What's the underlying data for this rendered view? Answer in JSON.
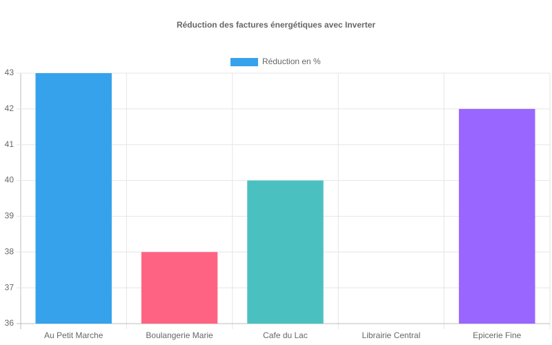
{
  "chart_data": {
    "type": "bar",
    "title": "Réduction des factures énergétiques avec Inverter",
    "categories": [
      "Au Petit Marche",
      "Boulangerie Marie",
      "Cafe du Lac",
      "Librairie Central",
      "Epicerie Fine"
    ],
    "series": [
      {
        "name": "Réduction en %",
        "color": "#36a2eb",
        "colors": [
          "#36a2eb",
          "#ff6384",
          "#4bc0c0",
          "#ff9f40",
          "#9966ff"
        ],
        "values": [
          43,
          38,
          40,
          36,
          42
        ]
      }
    ],
    "ylim": [
      36,
      43
    ],
    "yticks": [
      36,
      37,
      38,
      39,
      40,
      41,
      42,
      43
    ],
    "grid": true,
    "legend": "top"
  }
}
